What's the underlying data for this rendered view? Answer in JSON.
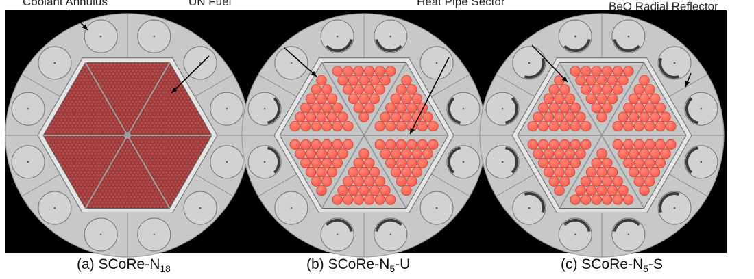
{
  "labels": {
    "coolant_annulus": "Coolant Annulus",
    "um_fuel": "UN Fuel",
    "heat_pipe_sector": "Heat Pipe Sector",
    "beo_radial_reflector": "BeO Radial Reflector"
  },
  "captions": [
    {
      "prefix": "(a) SCoRe-N",
      "sub": "18",
      "suffix": ""
    },
    {
      "prefix": "(b) SCoRe-N",
      "sub": "5",
      "suffix": "-U"
    },
    {
      "prefix": "(c) SCoRe-N",
      "sub": "5",
      "suffix": "-S"
    }
  ],
  "colors": {
    "reflector": "#c8c8c8",
    "core_boundary": "#e4e4e4",
    "fuel_small": "#b04a4a",
    "fuel_large": "#ff5a4a",
    "heat_pipe_arc": "#3c3c3c",
    "hexagon_edge": "#777777"
  },
  "panels": [
    {
      "id": "a",
      "fuel": "fine-lattice",
      "heat_pipe_arcs": false
    },
    {
      "id": "b",
      "fuel": "large-pins",
      "heat_pipe_arcs": "partial"
    },
    {
      "id": "c",
      "fuel": "large-pins",
      "heat_pipe_arcs": "all"
    }
  ]
}
